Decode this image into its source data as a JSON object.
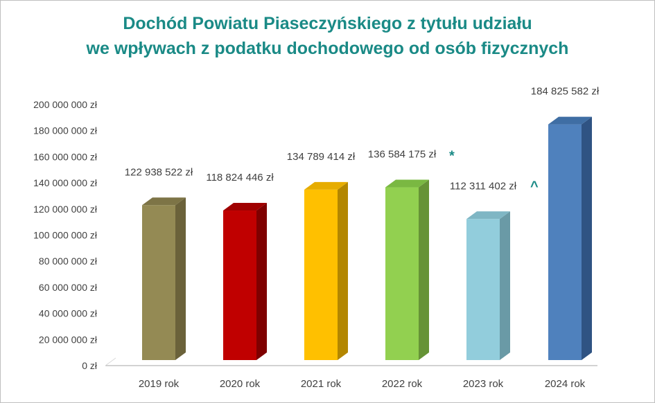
{
  "chart_data": {
    "type": "bar",
    "title_line1": "Dochód Powiatu Piaseczyńskiego z tytułu udziału",
    "title_line2": "we wpływach z podatku dochodowego od osób fizycznych",
    "xlabel": "",
    "ylabel": "",
    "ylim": [
      0,
      200000000
    ],
    "yticks": [
      "0 zł",
      "20 000 000 zł",
      "40 000 000 zł",
      "60 000 000 zł",
      "80 000 000 zł",
      "100 000 000 zł",
      "120 000 000 zł",
      "140 000 000 zł",
      "160 000 000 zł",
      "180 000 000 zł",
      "200 000 000 zł"
    ],
    "ytick_values": [
      0,
      20000000,
      40000000,
      60000000,
      80000000,
      100000000,
      120000000,
      140000000,
      160000000,
      180000000,
      200000000
    ],
    "grid": false,
    "categories": [
      "2019 rok",
      "2020 rok",
      "2021 rok",
      "2022 rok",
      "2023 rok",
      "2024 rok"
    ],
    "values": [
      122938522,
      118824446,
      134789414,
      136584175,
      112311402,
      184825582
    ],
    "data_labels": [
      "122 938 522 zł",
      "118 824 446 zł",
      "134 789 414 zł",
      "136 584 175 zł",
      "112 311 402 zł",
      "184 825 582 zł"
    ],
    "annotations": [
      "",
      "",
      "",
      "*",
      "^",
      ""
    ],
    "colors": {
      "front": [
        "#948a54",
        "#c00000",
        "#ffc000",
        "#92d050",
        "#92cddc",
        "#4f81bd"
      ],
      "side": [
        "#6b623a",
        "#7f0000",
        "#b38600",
        "#669336",
        "#6a9aa6",
        "#2f5383"
      ],
      "top": [
        "#7d7446",
        "#a00000",
        "#e6ac00",
        "#7ab842",
        "#7fb6c4",
        "#3f6ea4"
      ],
      "annotation": "#1a8a86",
      "title": "#1a8a86"
    }
  }
}
